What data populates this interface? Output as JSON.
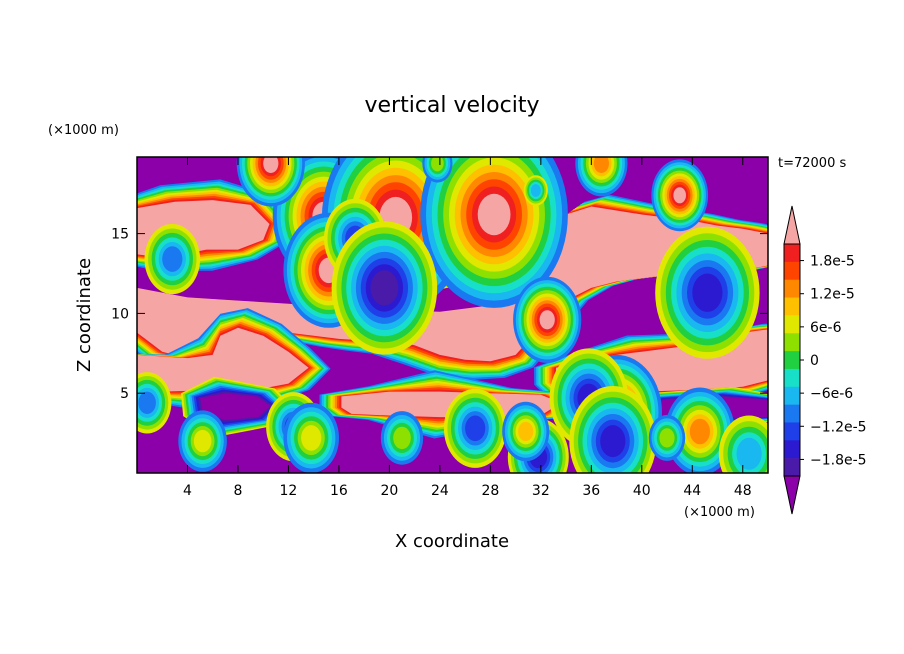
{
  "chart_data": {
    "type": "heatmap",
    "title": "vertical velocity",
    "xlabel": "X coordinate",
    "ylabel": "Z coordinate",
    "x_unit": "(×1000 m)",
    "y_unit": "(×1000 m)",
    "time_label": "t=72000 s",
    "xlim": [
      0,
      50
    ],
    "ylim": [
      0,
      19.8
    ],
    "x_ticks": [
      4,
      8,
      12,
      16,
      20,
      24,
      28,
      32,
      36,
      40,
      44,
      48
    ],
    "y_ticks": [
      5,
      10,
      15
    ],
    "grid": false,
    "colorbar": {
      "levels": [
        -2.1e-05,
        -1.8e-05,
        -1.5e-05,
        -1.2e-05,
        -9e-06,
        -6e-06,
        -3e-06,
        0,
        3e-06,
        6e-06,
        9e-06,
        1.2e-05,
        1.5e-05,
        1.8e-05,
        2.1e-05
      ],
      "labels": [
        "1.8e-5",
        "1.2e-5",
        "6e-6",
        "0",
        "−6e-6",
        "−1.2e-5",
        "−1.8e-5"
      ],
      "label_values": [
        1.8e-05,
        1.2e-05,
        6e-06,
        0,
        -6e-06,
        -1.2e-05,
        -1.8e-05
      ],
      "colors": [
        "#8b00a8",
        "#4a1aa8",
        "#2b1ad0",
        "#1f3fe8",
        "#1a78f0",
        "#19b8f0",
        "#18e0c8",
        "#20d040",
        "#8ee000",
        "#e0e800",
        "#ffc000",
        "#ff8800",
        "#ff4400",
        "#f02020",
        "#f6a5a5"
      ],
      "extend": "both"
    },
    "background_color": "#8b00a8",
    "regions": [
      {
        "value": 2.2e-05,
        "points": [
          [
            0,
            16.6
          ],
          [
            3,
            17
          ],
          [
            6,
            17.1
          ],
          [
            9,
            16.8
          ],
          [
            10.5,
            15.6
          ],
          [
            10,
            14.6
          ],
          [
            8,
            14
          ],
          [
            5.5,
            14
          ],
          [
            3,
            13.6
          ],
          [
            1,
            13.6
          ],
          [
            0,
            13.7
          ]
        ]
      },
      {
        "value": 2.2e-05,
        "points": [
          [
            0,
            11.6
          ],
          [
            4,
            11
          ],
          [
            8,
            10.8
          ],
          [
            12,
            10.6
          ],
          [
            16,
            10.4
          ],
          [
            20,
            10.2
          ],
          [
            24,
            10.1
          ],
          [
            28,
            10.5
          ],
          [
            30,
            11.4
          ],
          [
            31.3,
            12.3
          ],
          [
            32,
            13.8
          ],
          [
            33,
            15.3
          ],
          [
            34,
            16.2
          ],
          [
            36,
            16.7
          ],
          [
            40,
            16.2
          ],
          [
            44,
            15.8
          ],
          [
            46,
            15.5
          ],
          [
            48,
            15.3
          ],
          [
            50,
            15
          ],
          [
            50,
            13
          ],
          [
            46,
            12.4
          ],
          [
            42,
            12.4
          ],
          [
            38,
            12
          ],
          [
            36,
            11.6
          ],
          [
            34,
            10.8
          ],
          [
            32.5,
            9.6
          ],
          [
            31.5,
            8.7
          ],
          [
            30,
            7.4
          ],
          [
            28,
            7
          ],
          [
            26,
            7.1
          ],
          [
            24,
            7.4
          ],
          [
            22,
            8
          ],
          [
            20,
            8.3
          ],
          [
            18,
            8.3
          ],
          [
            16,
            8.4
          ],
          [
            14,
            8.6
          ],
          [
            12,
            8.8
          ],
          [
            10,
            9
          ],
          [
            9,
            9.1
          ],
          [
            8,
            8.6
          ],
          [
            7,
            7.4
          ],
          [
            6,
            7.1
          ],
          [
            4,
            7.2
          ],
          [
            2,
            7.6
          ],
          [
            1,
            8.2
          ],
          [
            0,
            8.8
          ]
        ]
      },
      {
        "value": 2.2e-05,
        "points": [
          [
            0,
            7.4
          ],
          [
            2,
            7.3
          ],
          [
            4,
            7.2
          ],
          [
            6,
            7.4
          ],
          [
            6.6,
            8.6
          ],
          [
            8,
            9.1
          ],
          [
            10,
            8.6
          ],
          [
            12,
            7.6
          ],
          [
            13.6,
            6.6
          ],
          [
            12,
            5.6
          ],
          [
            10,
            5.3
          ],
          [
            6,
            5.2
          ],
          [
            2,
            5.1
          ],
          [
            0,
            5.1
          ]
        ]
      },
      {
        "value": 2.2e-05,
        "points": [
          [
            33.2,
            6.6
          ],
          [
            36,
            7.2
          ],
          [
            40,
            7.6
          ],
          [
            44,
            8
          ],
          [
            48,
            8.8
          ],
          [
            50,
            9
          ],
          [
            50,
            5.8
          ],
          [
            48,
            5.4
          ],
          [
            44,
            5.2
          ],
          [
            40,
            5.1
          ],
          [
            36,
            5.1
          ],
          [
            34,
            5.2
          ],
          [
            33.2,
            5.7
          ]
        ]
      },
      {
        "value": 2.2e-05,
        "points": [
          [
            16.2,
            4.8
          ],
          [
            20,
            5.1
          ],
          [
            24,
            5.1
          ],
          [
            28,
            5
          ],
          [
            32,
            4.9
          ],
          [
            33.6,
            4.4
          ],
          [
            32,
            3.6
          ],
          [
            28,
            3.5
          ],
          [
            24,
            3.5
          ],
          [
            20,
            3.6
          ],
          [
            17,
            3.7
          ],
          [
            16.2,
            4.1
          ]
        ]
      },
      {
        "value": -2.2e-05,
        "points": [
          [
            20.6,
            14.2
          ],
          [
            23,
            14.4
          ],
          [
            26,
            14.2
          ],
          [
            28,
            13.6
          ],
          [
            26,
            12.6
          ],
          [
            23,
            12.4
          ],
          [
            21,
            12.8
          ],
          [
            20.2,
            13.6
          ]
        ]
      },
      {
        "value": -2.2e-05,
        "points": [
          [
            5,
            4.7
          ],
          [
            7,
            5
          ],
          [
            9.5,
            4.8
          ],
          [
            10.6,
            4.2
          ],
          [
            9.6,
            3.5
          ],
          [
            7,
            3.3
          ],
          [
            5.2,
            3.8
          ]
        ]
      },
      {
        "value": -2.2e-05,
        "points": [
          [
            38,
            4.2
          ],
          [
            42,
            4.6
          ],
          [
            46,
            4.8
          ],
          [
            50,
            4.6
          ],
          [
            50,
            3.5
          ],
          [
            46,
            3.4
          ],
          [
            42,
            3.4
          ],
          [
            39,
            3.6
          ]
        ]
      }
    ],
    "spots": [
      {
        "x": 14.8,
        "y": 16.1,
        "r": 0.9,
        "value": 2.2e-05
      },
      {
        "x": 20.5,
        "y": 16.0,
        "r": 1.3,
        "value": 2.2e-05
      },
      {
        "x": 28.3,
        "y": 16.2,
        "r": 1.3,
        "value": 2.2e-05
      },
      {
        "x": 43.0,
        "y": 17.4,
        "r": 0.5,
        "value": 2.2e-05
      },
      {
        "x": 10.6,
        "y": 19.4,
        "r": 0.6,
        "value": 2.2e-05
      },
      {
        "x": 15.2,
        "y": 12.7,
        "r": 0.8,
        "value": 2.2e-05
      },
      {
        "x": 32.5,
        "y": 9.6,
        "r": 0.6,
        "value": 2.2e-05
      },
      {
        "x": 38.0,
        "y": 3.8,
        "r": 0.8,
        "value": 2.2e-05
      },
      {
        "x": 2.8,
        "y": 13.4,
        "r": 0.8,
        "value": -9e-06
      },
      {
        "x": 17.3,
        "y": 14.7,
        "r": 0.8,
        "value": -1.2e-05
      },
      {
        "x": 19.6,
        "y": 11.6,
        "r": 1.1,
        "value": -1.8e-05
      },
      {
        "x": 45.2,
        "y": 11.3,
        "r": 1.2,
        "value": -1.5e-05
      },
      {
        "x": 35.8,
        "y": 4.7,
        "r": 0.9,
        "value": -1.5e-05
      },
      {
        "x": 12.4,
        "y": 2.9,
        "r": 0.7,
        "value": -1.2e-05
      },
      {
        "x": 26.8,
        "y": 2.8,
        "r": 0.8,
        "value": -1.2e-05
      },
      {
        "x": 37.7,
        "y": 2.0,
        "r": 1.0,
        "value": -1.5e-05
      },
      {
        "x": 31.8,
        "y": 1.0,
        "r": 0.7,
        "value": -1.5e-05
      },
      {
        "x": 5.2,
        "y": 2.0,
        "r": 0.7,
        "value": 6e-06
      },
      {
        "x": 13.8,
        "y": 2.2,
        "r": 0.8,
        "value": 6e-06
      },
      {
        "x": 21.0,
        "y": 2.2,
        "r": 0.7,
        "value": 3e-06
      },
      {
        "x": 30.8,
        "y": 2.6,
        "r": 0.6,
        "value": 9e-06
      },
      {
        "x": 44.6,
        "y": 2.6,
        "r": 0.8,
        "value": 1.2e-05
      },
      {
        "x": 42.0,
        "y": 2.2,
        "r": 0.6,
        "value": 3e-06
      },
      {
        "x": 0.8,
        "y": 4.4,
        "r": 0.7,
        "value": -9e-06
      },
      {
        "x": 48.5,
        "y": 1.2,
        "r": 1.0,
        "value": -6e-06
      },
      {
        "x": 31.6,
        "y": 17.7,
        "r": 0.4,
        "value": -6e-06
      },
      {
        "x": 36.8,
        "y": 19.4,
        "r": 0.6,
        "value": 1.2e-05
      },
      {
        "x": 23.8,
        "y": 19.4,
        "r": 0.5,
        "value": 3e-06
      }
    ]
  }
}
